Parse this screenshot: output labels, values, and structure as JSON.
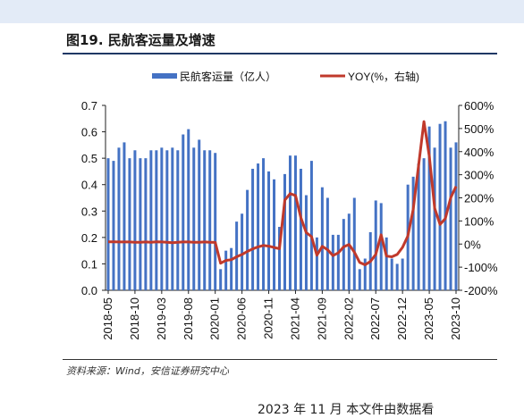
{
  "header": {
    "title": "图19. 民航客运量及增速"
  },
  "source": "资料来源：Wind，安信证券研究中心",
  "footer": "2023 年 11 月    本文件由数据看",
  "colors": {
    "bar": "#4472c4",
    "line": "#c0392b",
    "title_rule": "#1f3864"
  },
  "chart_data": {
    "type": "bar",
    "title": "",
    "xlabel": "",
    "ylabel": "",
    "legend": [
      "民航客运量（亿人）",
      "YOY(%，右轴)"
    ],
    "legend_position": "top",
    "grid": false,
    "ylim": [
      0,
      0.7
    ],
    "y2lim": [
      -200,
      600
    ],
    "y_ticks": [
      "0.0",
      "0.1",
      "0.2",
      "0.3",
      "0.4",
      "0.5",
      "0.6",
      "0.7"
    ],
    "y2_ticks": [
      "-200%",
      "-100%",
      "0%",
      "100%",
      "200%",
      "300%",
      "400%",
      "500%",
      "600%"
    ],
    "x_tick_labels": [
      "2018-05",
      "2018-10",
      "2019-03",
      "2019-08",
      "2020-01",
      "2020-06",
      "2020-11",
      "2021-04",
      "2021-09",
      "2022-02",
      "2022-07",
      "2022-12",
      "2023-05",
      "2023-10"
    ],
    "categories": [
      "2018-05",
      "2018-06",
      "2018-07",
      "2018-08",
      "2018-09",
      "2018-10",
      "2018-11",
      "2018-12",
      "2019-01",
      "2019-02",
      "2019-03",
      "2019-04",
      "2019-05",
      "2019-06",
      "2019-07",
      "2019-08",
      "2019-09",
      "2019-10",
      "2019-11",
      "2019-12",
      "2020-01",
      "2020-02",
      "2020-03",
      "2020-04",
      "2020-05",
      "2020-06",
      "2020-07",
      "2020-08",
      "2020-09",
      "2020-10",
      "2020-11",
      "2020-12",
      "2021-01",
      "2021-02",
      "2021-03",
      "2021-04",
      "2021-05",
      "2021-06",
      "2021-07",
      "2021-08",
      "2021-09",
      "2021-10",
      "2021-11",
      "2021-12",
      "2022-01",
      "2022-02",
      "2022-03",
      "2022-04",
      "2022-05",
      "2022-06",
      "2022-07",
      "2022-08",
      "2022-09",
      "2022-10",
      "2022-11",
      "2022-12",
      "2023-01",
      "2023-02",
      "2023-03",
      "2023-04",
      "2023-05",
      "2023-06",
      "2023-07",
      "2023-08",
      "2023-09",
      "2023-10"
    ],
    "series": [
      {
        "name": "民航客运量（亿人）",
        "type": "bar",
        "axis": "left",
        "values": [
          0.5,
          0.49,
          0.54,
          0.56,
          0.5,
          0.53,
          0.5,
          0.5,
          0.53,
          0.53,
          0.54,
          0.53,
          0.54,
          0.53,
          0.59,
          0.61,
          0.54,
          0.57,
          0.53,
          0.53,
          0.52,
          0.08,
          0.15,
          0.16,
          0.26,
          0.29,
          0.38,
          0.46,
          0.48,
          0.5,
          0.45,
          0.42,
          0.24,
          0.44,
          0.51,
          0.51,
          0.46,
          0.36,
          0.49,
          0.2,
          0.39,
          0.35,
          0.21,
          0.21,
          0.27,
          0.29,
          0.35,
          0.08,
          0.12,
          0.22,
          0.34,
          0.33,
          0.2,
          0.12,
          0.1,
          0.12,
          0.4,
          0.43,
          0.48,
          0.5,
          0.62,
          0.54,
          0.63,
          0.64,
          0.54,
          0.56
        ]
      },
      {
        "name": "YOY(%，右轴)",
        "type": "line",
        "axis": "right",
        "values": [
          10,
          10,
          9,
          9,
          9,
          8,
          8,
          9,
          8,
          10,
          9,
          8,
          6,
          8,
          9,
          9,
          8,
          8,
          9,
          8,
          7,
          -83,
          -71,
          -68,
          -55,
          -45,
          -32,
          -21,
          -12,
          -6,
          -9,
          -15,
          -20,
          190,
          218,
          210,
          115,
          50,
          32,
          -48,
          -10,
          -25,
          -50,
          -38,
          -12,
          -2,
          -35,
          -80,
          -90,
          -75,
          -45,
          40,
          -52,
          -55,
          -45,
          -14,
          35,
          150,
          340,
          530,
          380,
          155,
          85,
          110,
          200,
          250
        ]
      }
    ]
  }
}
